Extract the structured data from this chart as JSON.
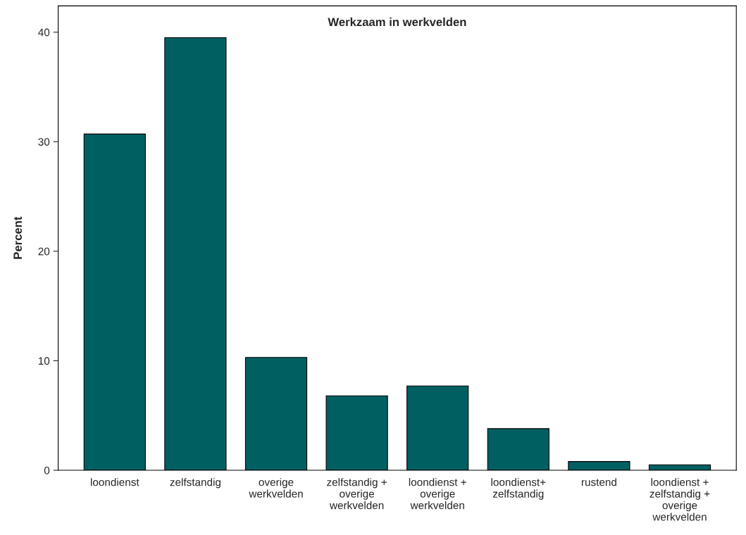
{
  "chart_data": {
    "type": "bar",
    "title": "Werkzaam in werkvelden",
    "ylabel": "Percent",
    "categories": [
      "loondienst",
      "zelfstandig",
      "overige\nwerkvelden",
      "zelfstandig +\noverige\nwerkvelden",
      "loondienst +\noverige\nwerkvelden",
      "loondienst+\nzelfstandig",
      "rustend",
      "loondienst +\nzelfstandig +\noverige\nwerkvelden"
    ],
    "values": [
      30.7,
      39.5,
      10.3,
      6.8,
      7.7,
      3.8,
      0.8,
      0.5
    ],
    "color": "#005f61",
    "ylim": [
      0,
      42.4
    ],
    "yticks": [
      0,
      10,
      20,
      30,
      40
    ],
    "grid": false,
    "legend": false
  }
}
